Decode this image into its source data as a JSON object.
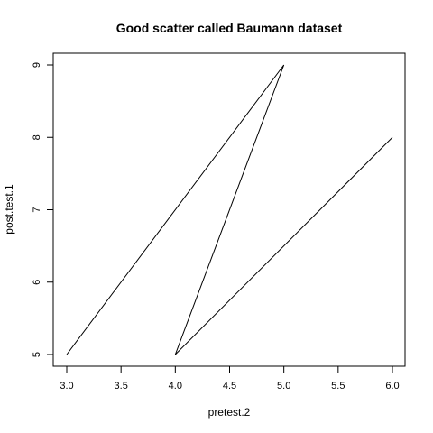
{
  "chart_data": {
    "type": "line",
    "title": "Good scatter called Baumann dataset",
    "xlabel": "pretest.2",
    "ylabel": "post.test.1",
    "xlim": [
      3.0,
      6.0
    ],
    "ylim": [
      5,
      9
    ],
    "x_ticks": [
      "3.0",
      "3.5",
      "4.0",
      "4.5",
      "5.0",
      "5.5",
      "6.0"
    ],
    "y_ticks": [
      "5",
      "6",
      "7",
      "8",
      "9"
    ],
    "grid": false,
    "series": [
      {
        "x": [
          3.0,
          5.0,
          4.0,
          6.0
        ],
        "y": [
          5,
          9,
          5,
          8
        ]
      }
    ]
  }
}
